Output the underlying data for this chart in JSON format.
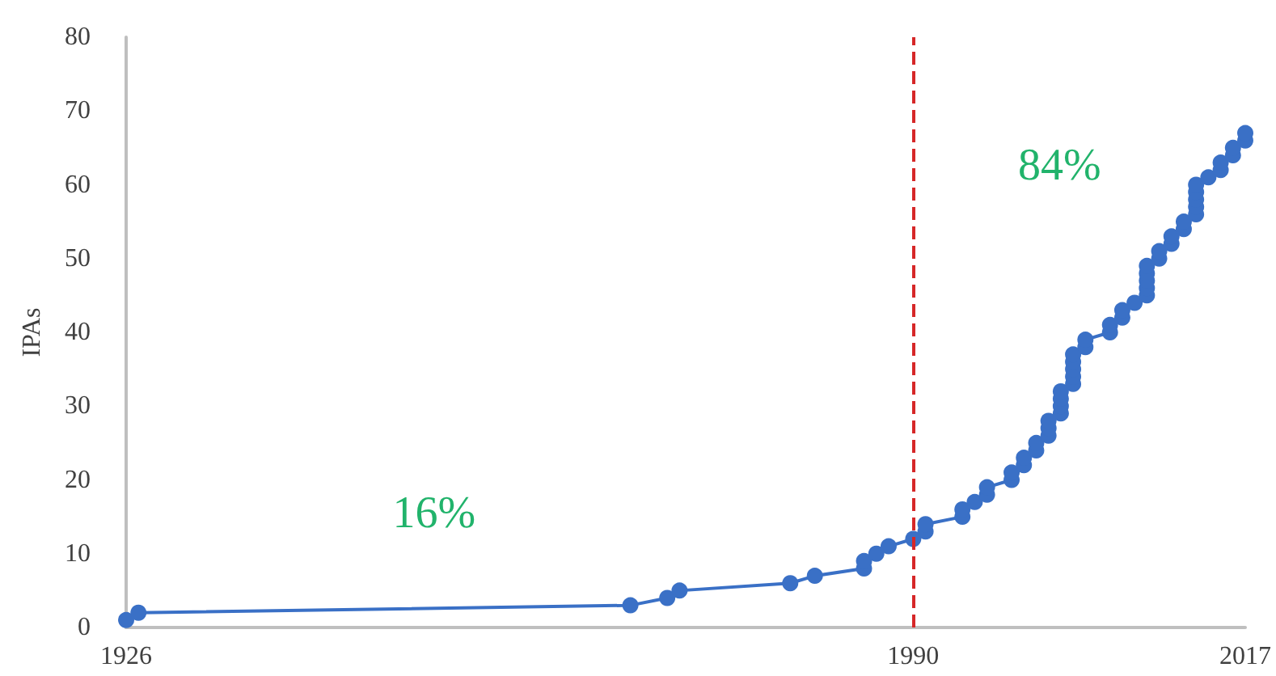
{
  "chart_data": {
    "type": "line",
    "ylabel": "IPAs",
    "x": [
      1926,
      1927,
      1967,
      1970,
      1971,
      1980,
      1982,
      1986,
      1986,
      1987,
      1988,
      1990,
      1991,
      1991,
      1994,
      1994,
      1995,
      1996,
      1996,
      1998,
      1998,
      1999,
      1999,
      2000,
      2000,
      2001,
      2001,
      2001,
      2002,
      2002,
      2002,
      2002,
      2003,
      2003,
      2003,
      2003,
      2003,
      2004,
      2004,
      2006,
      2006,
      2007,
      2007,
      2008,
      2009,
      2009,
      2009,
      2009,
      2009,
      2010,
      2010,
      2011,
      2011,
      2012,
      2012,
      2013,
      2013,
      2013,
      2013,
      2013,
      2014,
      2015,
      2015,
      2016,
      2016,
      2017,
      2017
    ],
    "series": [
      {
        "color": "#3a70c6",
        "values": [
          1,
          2,
          3,
          4,
          5,
          6,
          7,
          8,
          9,
          10,
          11,
          12,
          13,
          14,
          15,
          16,
          17,
          18,
          19,
          20,
          21,
          22,
          23,
          24,
          25,
          26,
          27,
          28,
          29,
          30,
          31,
          32,
          33,
          34,
          35,
          36,
          37,
          38,
          39,
          40,
          41,
          42,
          43,
          44,
          45,
          46,
          47,
          48,
          49,
          50,
          51,
          52,
          53,
          54,
          55,
          56,
          57,
          58,
          59,
          60,
          61,
          62,
          63,
          64,
          65,
          66,
          67
        ]
      }
    ],
    "xlim": [
      1926,
      2017
    ],
    "xticks": [
      1926,
      1990,
      2017
    ],
    "ylim": [
      0,
      80
    ],
    "yticks": [
      0,
      10,
      20,
      30,
      40,
      50,
      60,
      70,
      80
    ],
    "ref_lines": [
      {
        "axis": "x",
        "value": 1990,
        "color": "#d62728",
        "line_style": "dashed"
      }
    ],
    "annotations": [
      "16%",
      "84%"
    ],
    "grid": false,
    "marker": "circle",
    "line_style": "solid"
  }
}
